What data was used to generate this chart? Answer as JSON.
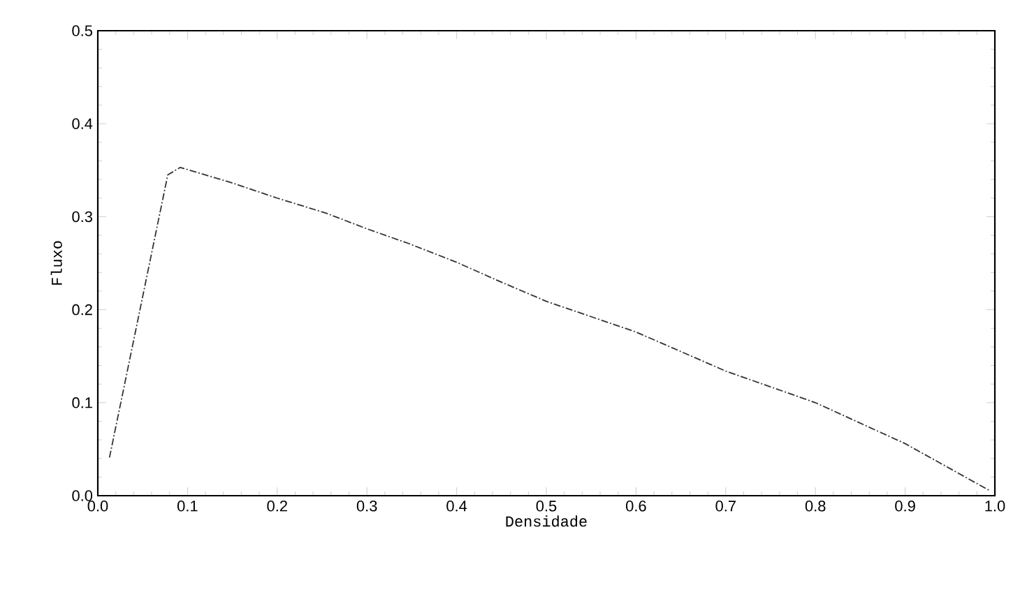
{
  "chart_data": {
    "type": "line",
    "xlabel": "Densidade",
    "ylabel": "Fluxo",
    "x": [
      0.013,
      0.078,
      0.092,
      0.151,
      0.2,
      0.254,
      0.3,
      0.347,
      0.4,
      0.449,
      0.5,
      0.6,
      0.7,
      0.8,
      0.9,
      0.995
    ],
    "series": [
      {
        "color": "#333333",
        "values": [
          0.041,
          0.345,
          0.353,
          0.336,
          0.32,
          0.304,
          0.287,
          0.271,
          0.251,
          0.23,
          0.209,
          0.176,
          0.134,
          0.1,
          0.056,
          0.005
        ]
      }
    ],
    "xlim": [
      0,
      1
    ],
    "ylim": [
      0,
      0.5
    ],
    "xticks": [
      {
        "value": 0,
        "label": "0.0"
      },
      0.1,
      0.2,
      0.3,
      0.4,
      0.5,
      0.6,
      0.7,
      0.8,
      0.9,
      {
        "value": 1,
        "label": "1.0"
      }
    ],
    "yticks": [
      {
        "value": 0,
        "label": "0.0"
      },
      0.1,
      0.2,
      0.3,
      0.4,
      0.5
    ],
    "grid": false,
    "marker": "none",
    "line_style": "dashed"
  }
}
